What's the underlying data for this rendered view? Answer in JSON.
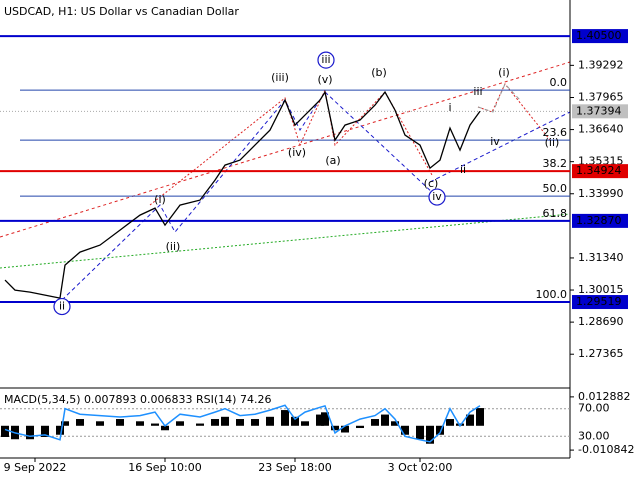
{
  "chart_data": [
    {
      "type": "line",
      "title": "USDCAD, H1:  US Dollar vs Canadian Dollar",
      "x": [
        1,
        3,
        6,
        9,
        12,
        13,
        16,
        20,
        24,
        28,
        31,
        33,
        36,
        40,
        43,
        45,
        48,
        51,
        54,
        57,
        59,
        61,
        64,
        65,
        67,
        69,
        72,
        75,
        77,
        79,
        81,
        84,
        86,
        88,
        90,
        92,
        94,
        96
      ],
      "series": [
        {
          "color": "#000000",
          "values": [
            1.30426,
            1.30013,
            1.2993,
            1.29806,
            1.29682,
            1.31045,
            1.31582,
            1.31871,
            1.3249,
            1.33109,
            1.33398,
            1.32697,
            1.33522,
            1.33729,
            1.34555,
            1.35174,
            1.3538,
            1.36,
            1.36619,
            1.37858,
            1.36825,
            1.37238,
            1.37858,
            1.38188,
            1.36206,
            1.36825,
            1.37032,
            1.37651,
            1.38188,
            1.37445,
            1.36412,
            1.36,
            1.3505,
            1.3538,
            1.36701,
            1.35793,
            1.36825,
            1.37394
          ]
        }
      ],
      "xlim": [
        0,
        114
      ],
      "xticks": [
        {
          "value": 7,
          "label": "9 Sep 2022"
        },
        {
          "value": 33,
          "label": "16 Sep 10:00"
        },
        {
          "value": 59,
          "label": "23 Sep 18:00"
        },
        {
          "value": 84,
          "label": "3 Oct 02:00"
        }
      ],
      "ylim": [
        1.2597,
        1.4199
      ],
      "yticks": [
        1.39292,
        1.37965,
        {
          "value": 1.3664,
          "label": "1.36640"
        },
        1.35315,
        {
          "value": 1.3399,
          "label": "1.33990"
        },
        {
          "value": 1.3134,
          "label": "1.31340"
        },
        1.30015,
        {
          "value": 1.2869,
          "label": "1.28690"
        },
        1.27365
      ],
      "levels": [
        {
          "value": 1.405,
          "label": "1.40500",
          "color": "#0000cc"
        },
        {
          "value": 1.34924,
          "label": "1.34924",
          "color": "#e00000"
        },
        {
          "value": 1.3287,
          "label": "1.32870",
          "color": "#0000cc"
        },
        {
          "value": 1.29519,
          "label": "1.29519",
          "color": "#0000cc"
        }
      ],
      "current_price": 1.37394,
      "fibonacci": {
        "top": 1.3827,
        "bottom": 1.29519,
        "color": "#2244aa",
        "levels": [
          {
            "value": 0,
            "label": "0.0"
          },
          23.6,
          38.2,
          {
            "value": 50,
            "label": "50.0"
          },
          61.8,
          {
            "value": 100,
            "label": "100.0"
          }
        ]
      },
      "annotations": [
        {
          "text": "ii",
          "x": 12.4,
          "y": 1.29332,
          "color": "#1a1acc",
          "circled": true
        },
        {
          "text": "(i)",
          "x": 32,
          "y": 1.33729,
          "color": "#dd2222",
          "circled": false
        },
        {
          "text": "(ii)",
          "x": 34.6,
          "y": 1.31788,
          "color": "#dd2222",
          "circled": false
        },
        {
          "text": "(iii)",
          "x": 56,
          "y": 1.38766,
          "color": "#dd2222",
          "circled": false
        },
        {
          "text": "(iv)",
          "x": 59.4,
          "y": 1.35669,
          "color": "#dd2222",
          "circled": false
        },
        {
          "text": "iii",
          "x": 65.2,
          "y": 1.39509,
          "color": "#1a1acc",
          "circled": true
        },
        {
          "text": "(v)",
          "x": 65,
          "y": 1.38683,
          "color": "#dd2222",
          "circled": false
        },
        {
          "text": "(a)",
          "x": 66.6,
          "y": 1.35339,
          "color": "#dd2222",
          "circled": false
        },
        {
          "text": "(b)",
          "x": 75.8,
          "y": 1.38972,
          "color": "#dd2222",
          "circled": false
        },
        {
          "text": "(c)",
          "x": 86.2,
          "y": 1.34389,
          "color": "#dd2222",
          "circled": false
        },
        {
          "text": "iv",
          "x": 87.4,
          "y": 1.33853,
          "color": "#1a1acc",
          "circled": true
        },
        {
          "text": "i",
          "x": 90,
          "y": 1.37527,
          "color": "#999999",
          "circled": false
        },
        {
          "text": "ii",
          "x": 92.6,
          "y": 1.34967,
          "color": "#999999",
          "circled": false
        },
        {
          "text": "iii",
          "x": 95.6,
          "y": 1.38188,
          "color": "#999999",
          "circled": false
        },
        {
          "text": "iv",
          "x": 99,
          "y": 1.36124,
          "color": "#999999",
          "circled": false
        },
        {
          "text": "(i)",
          "x": 100.8,
          "y": 1.38972,
          "color": "#dd2222",
          "circled": false
        },
        {
          "text": "(ii)",
          "x": 110.4,
          "y": 1.36082,
          "color": "#dd2222",
          "circled": false
        }
      ]
    },
    {
      "type": "indicator",
      "label": "MACD(5,34,5) 0.007893 0.006833 RSI(14) 74.26",
      "x": [
        1,
        3,
        6,
        9,
        12,
        13,
        16,
        20,
        24,
        28,
        31,
        33,
        36,
        40,
        43,
        45,
        48,
        51,
        54,
        57,
        59,
        61,
        64,
        65,
        67,
        69,
        72,
        75,
        77,
        79,
        81,
        84,
        86,
        88,
        90,
        92,
        94,
        96
      ],
      "series": [
        {
          "color": "#000000",
          "values": [
            -0.005,
            -0.006,
            -0.006,
            -0.005,
            -0.004,
            0.002,
            0.003,
            0.002,
            0.003,
            0.002,
            0.001,
            -0.002,
            0.002,
            0.001,
            0.003,
            0.004,
            0.003,
            0.003,
            0.004,
            0.007,
            0.004,
            0.002,
            0.005,
            0.006,
            -0.002,
            -0.003,
            -0.001,
            0.003,
            0.005,
            0.002,
            -0.004,
            -0.006,
            -0.008,
            -0.004,
            0.003,
            0.001,
            0.005,
            0.007893
          ]
        },
        {
          "color": "#1e90ff",
          "axis": "y2",
          "values": [
            40,
            35,
            30,
            32,
            25,
            70,
            62,
            60,
            58,
            60,
            65,
            45,
            62,
            58,
            65,
            70,
            60,
            62,
            68,
            75,
            55,
            65,
            72,
            74,
            35,
            45,
            55,
            60,
            70,
            55,
            30,
            25,
            22,
            35,
            70,
            45,
            65,
            74.26
          ]
        }
      ],
      "xlim": [
        0,
        114
      ],
      "ylim": [
        -0.01392,
        0.01684
      ],
      "yticks": [
        0.012882,
        -0.010842
      ],
      "y2lim": [
        0,
        100
      ],
      "y2ticks": [
        {
          "value": 70,
          "label": "70.00"
        },
        {
          "value": 30,
          "label": "30.00"
        }
      ]
    }
  ]
}
